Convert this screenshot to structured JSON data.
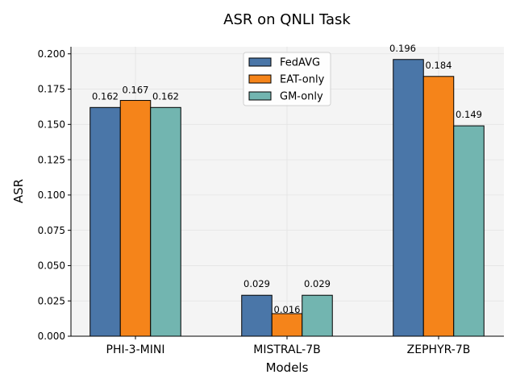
{
  "chart_data": {
    "type": "bar",
    "title": "ASR on QNLI Task",
    "xlabel": "Models",
    "ylabel": "ASR",
    "categories": [
      "PHI-3-MINI",
      "MISTRAL-7B",
      "ZEPHYR-7B"
    ],
    "series": [
      {
        "name": "FedAVG",
        "color": "#4a76a8",
        "values": [
          0.162,
          0.029,
          0.196
        ],
        "labels": [
          "0.162",
          "0.029",
          "0.196"
        ]
      },
      {
        "name": "EAT-only",
        "color": "#f5841a",
        "values": [
          0.167,
          0.016,
          0.184
        ],
        "labels": [
          "0.167",
          "0.016",
          "0.184"
        ]
      },
      {
        "name": "GM-only",
        "color": "#72b5b0",
        "values": [
          0.162,
          0.029,
          0.149
        ],
        "labels": [
          "0.162",
          "0.029",
          "0.149"
        ]
      }
    ],
    "ylim": [
      0,
      0.205
    ],
    "yticks": [
      "0.000",
      "0.025",
      "0.050",
      "0.075",
      "0.100",
      "0.125",
      "0.150",
      "0.175",
      "0.200"
    ],
    "grid": true,
    "legend_position": "top-center"
  }
}
